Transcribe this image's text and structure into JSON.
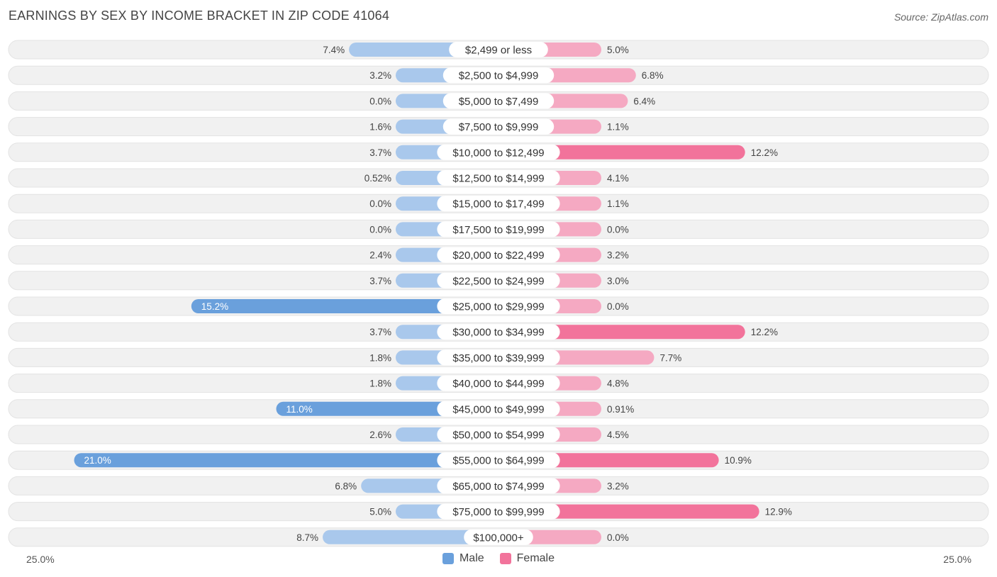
{
  "title": "EARNINGS BY SEX BY INCOME BRACKET IN ZIP CODE 41064",
  "source": "Source: ZipAtlas.com",
  "colors": {
    "male_light": "#a9c8ec",
    "male_dark": "#6aa0dc",
    "female_light": "#f5a9c2",
    "female_dark": "#f2739b",
    "row_bg": "#f1f1f1"
  },
  "legend": {
    "male": "Male",
    "female": "Female"
  },
  "axis": {
    "left_label": "25.0%",
    "right_label": "25.0%"
  },
  "chart_data": {
    "type": "bar",
    "orientation": "horizontal-diverging",
    "title": "EARNINGS BY SEX BY INCOME BRACKET IN ZIP CODE 41064",
    "xlim": [
      -25,
      25
    ],
    "categories": [
      "$2,499 or less",
      "$2,500 to $4,999",
      "$5,000 to $7,499",
      "$7,500 to $9,999",
      "$10,000 to $12,499",
      "$12,500 to $14,999",
      "$15,000 to $17,499",
      "$17,500 to $19,999",
      "$20,000 to $22,499",
      "$22,500 to $24,999",
      "$25,000 to $29,999",
      "$30,000 to $34,999",
      "$35,000 to $39,999",
      "$40,000 to $44,999",
      "$45,000 to $49,999",
      "$50,000 to $54,999",
      "$55,000 to $64,999",
      "$65,000 to $74,999",
      "$75,000 to $99,999",
      "$100,000+"
    ],
    "series": [
      {
        "name": "Male",
        "values": [
          7.4,
          3.2,
          0.0,
          1.6,
          3.7,
          0.52,
          0.0,
          0.0,
          2.4,
          3.7,
          15.2,
          3.7,
          1.8,
          1.8,
          11.0,
          2.6,
          21.0,
          6.8,
          5.0,
          8.7
        ],
        "labels": [
          "7.4%",
          "3.2%",
          "0.0%",
          "1.6%",
          "3.7%",
          "0.52%",
          "0.0%",
          "0.0%",
          "2.4%",
          "3.7%",
          "15.2%",
          "3.7%",
          "1.8%",
          "1.8%",
          "11.0%",
          "2.6%",
          "21.0%",
          "6.8%",
          "5.0%",
          "8.7%"
        ]
      },
      {
        "name": "Female",
        "values": [
          5.0,
          6.8,
          6.4,
          1.1,
          12.2,
          4.1,
          1.1,
          0.0,
          3.2,
          3.0,
          0.0,
          12.2,
          7.7,
          4.8,
          0.91,
          4.5,
          10.9,
          3.2,
          12.9,
          0.0
        ],
        "labels": [
          "5.0%",
          "6.8%",
          "6.4%",
          "1.1%",
          "12.2%",
          "4.1%",
          "1.1%",
          "0.0%",
          "3.2%",
          "3.0%",
          "0.0%",
          "12.2%",
          "7.7%",
          "4.8%",
          "0.91%",
          "4.5%",
          "10.9%",
          "3.2%",
          "12.9%",
          "0.0%"
        ]
      }
    ]
  }
}
